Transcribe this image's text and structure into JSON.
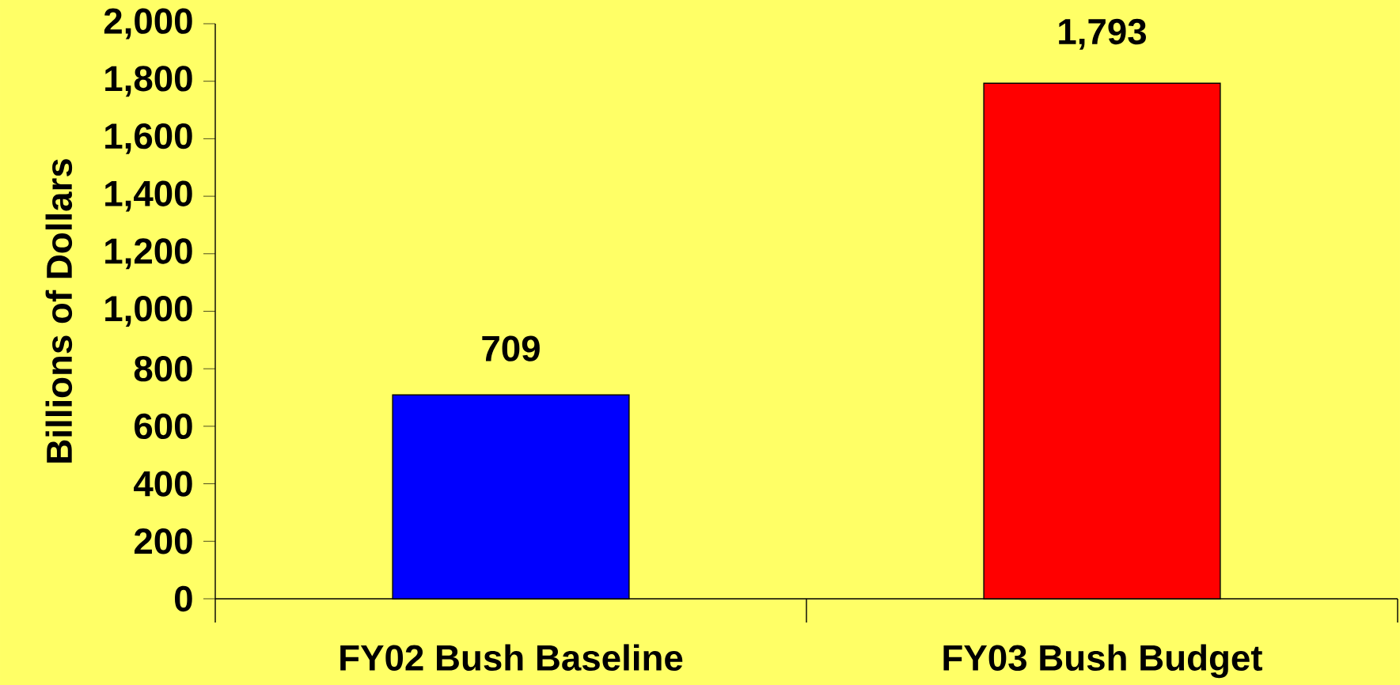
{
  "chart_data": {
    "type": "bar",
    "ylabel": "Billions of Dollars",
    "categories": [
      "FY02 Bush Baseline",
      "FY03 Bush Budget"
    ],
    "values": [
      709,
      1793
    ],
    "colors": [
      "#0000ff",
      "#ff0000"
    ],
    "value_labels": [
      "709",
      "1,793"
    ],
    "ylim": [
      0,
      2000
    ],
    "yticks": [
      0,
      200,
      400,
      600,
      800,
      {
        "value": 1000,
        "label": "1,000"
      },
      {
        "value": 1200,
        "label": "1,200"
      },
      {
        "value": 1400,
        "label": "1,400"
      },
      {
        "value": 1600,
        "label": "1,600"
      },
      {
        "value": 1800,
        "label": "1,800"
      },
      {
        "value": 2000,
        "label": "2,000"
      }
    ],
    "grid": false
  }
}
